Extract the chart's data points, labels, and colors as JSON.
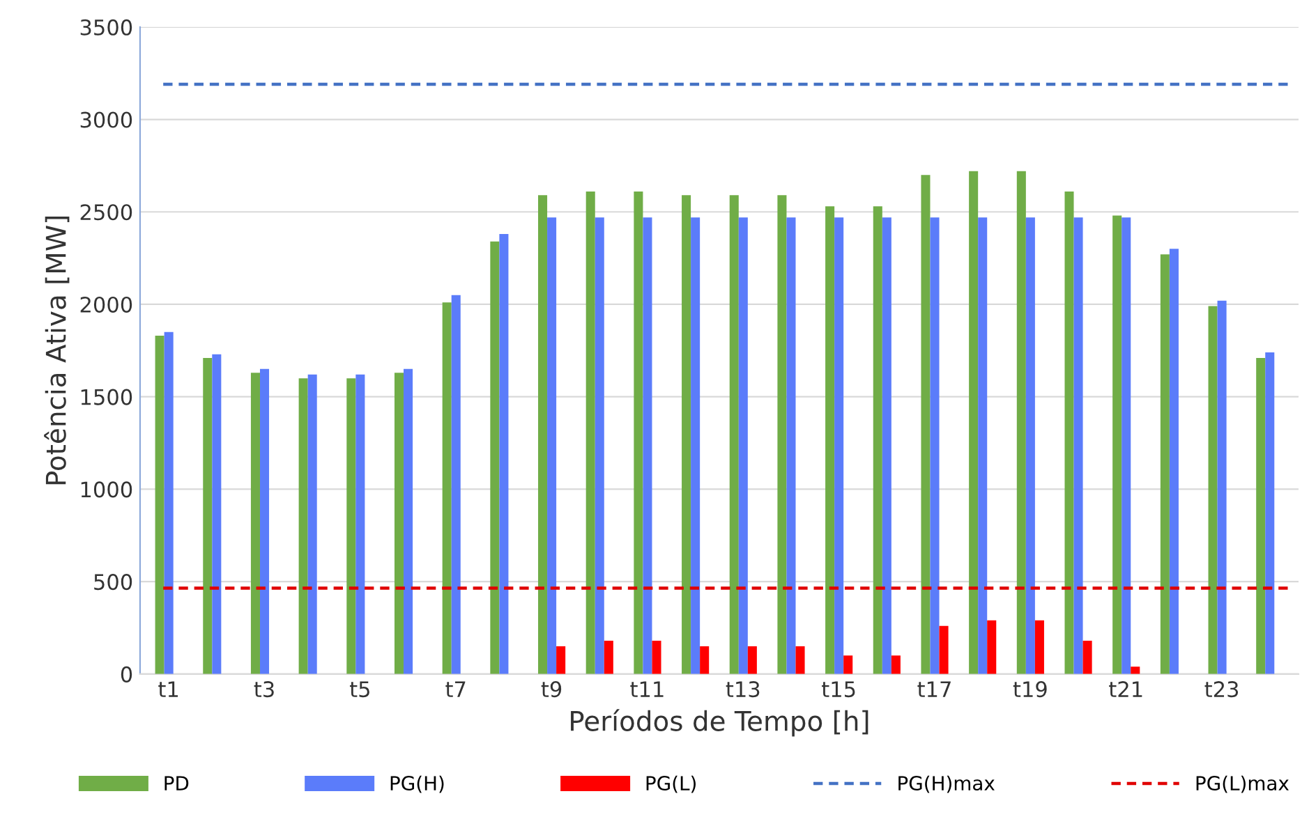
{
  "chart_data": {
    "type": "bar",
    "xlabel": "Períodos de Tempo [h]",
    "ylabel": "Potência Ativa [MW]",
    "categories": [
      "t1",
      null,
      "t3",
      null,
      "t5",
      null,
      "t7",
      null,
      "t9",
      null,
      "t11",
      null,
      "t13",
      null,
      "t15",
      null,
      "t17",
      null,
      "t19",
      null,
      "t21",
      null,
      "t23",
      null
    ],
    "series": [
      {
        "name": "PD",
        "color": "#70ad47",
        "values": [
          1830,
          1710,
          1630,
          1600,
          1600,
          1630,
          2010,
          2340,
          2590,
          2610,
          2610,
          2590,
          2590,
          2590,
          2530,
          2530,
          2700,
          2720,
          2720,
          2610,
          2480,
          2270,
          1990,
          1710
        ]
      },
      {
        "name": "PG(H)",
        "color": "#5b7cfa",
        "values": [
          1850,
          1730,
          1650,
          1620,
          1620,
          1650,
          2050,
          2380,
          2470,
          2470,
          2470,
          2470,
          2470,
          2470,
          2470,
          2470,
          2470,
          2470,
          2470,
          2470,
          2470,
          2300,
          2020,
          1740
        ]
      },
      {
        "name": "PG(L)",
        "color": "#ff0000",
        "values": [
          0,
          0,
          0,
          0,
          0,
          0,
          0,
          0,
          150,
          180,
          180,
          150,
          150,
          150,
          100,
          100,
          260,
          290,
          290,
          180,
          40,
          0,
          0,
          0
        ]
      }
    ],
    "ref_lines": [
      {
        "axis": "y",
        "value": 3190,
        "label": "PG(H)max",
        "color": "#4472c4",
        "line_style": "dashed"
      },
      {
        "axis": "y",
        "value": 465,
        "label": "PG(L)max",
        "color": "#e00000",
        "line_style": "dashed"
      }
    ],
    "ylim": [
      0,
      3500
    ],
    "yticks": [
      0,
      500,
      1000,
      1500,
      2000,
      2500,
      3000,
      3500
    ],
    "grid": "y",
    "legend": "bottom"
  }
}
